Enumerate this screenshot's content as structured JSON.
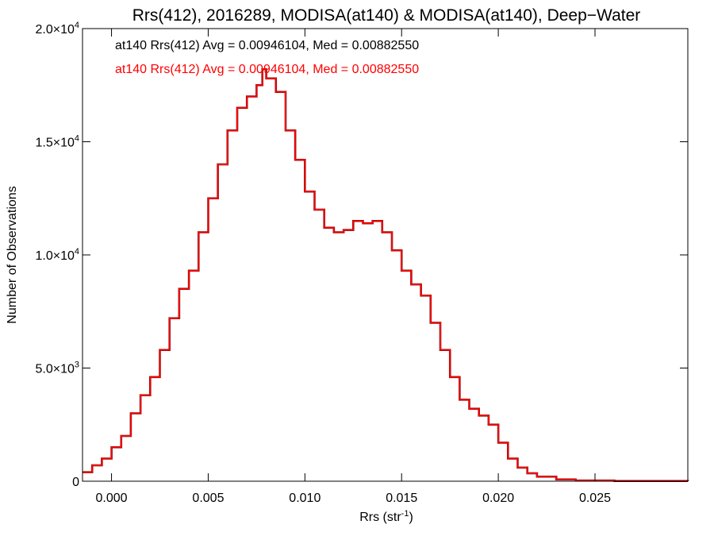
{
  "chart_data": {
    "type": "line",
    "title": "Rrs(412), 2016289, MODISA(at140) & MODISA(at140), Deep−Water",
    "xlabel": "Rrs (str",
    "xlabel_sup": "-1",
    "xlabel_close": ")",
    "ylabel": "Number of Observations",
    "xlim": [
      -0.0015,
      0.0298
    ],
    "ylim": [
      0,
      20000
    ],
    "x_ticks": [
      0.0,
      0.005,
      0.01,
      0.015,
      0.02,
      0.025
    ],
    "x_tick_labels": [
      "0.000",
      "0.005",
      "0.010",
      "0.015",
      "0.020",
      "0.025"
    ],
    "y_ticks": [
      0,
      5000,
      10000,
      15000,
      20000
    ],
    "y_tick_labels": [
      {
        "base": "0",
        "exp": ""
      },
      {
        "base": "5.0×10",
        "exp": "3"
      },
      {
        "base": "1.0×10",
        "exp": "4"
      },
      {
        "base": "1.5×10",
        "exp": "4"
      },
      {
        "base": "2.0×10",
        "exp": "4"
      }
    ],
    "legend_position": "top-left",
    "series": [
      {
        "name": "at140 Rrs(412) Avg = 0.00946104, Med = 0.00882550",
        "color": "#000000",
        "values": [
          [
            -0.0015,
            400
          ],
          [
            -0.001,
            700
          ],
          [
            -0.0005,
            1000
          ],
          [
            0.0,
            1500
          ],
          [
            0.0005,
            2000
          ],
          [
            0.001,
            3000
          ],
          [
            0.0015,
            3800
          ],
          [
            0.002,
            4600
          ],
          [
            0.0025,
            5800
          ],
          [
            0.003,
            7200
          ],
          [
            0.0035,
            8500
          ],
          [
            0.004,
            9300
          ],
          [
            0.0045,
            11000
          ],
          [
            0.005,
            12500
          ],
          [
            0.0055,
            14000
          ],
          [
            0.006,
            15500
          ],
          [
            0.0065,
            16500
          ],
          [
            0.007,
            17000
          ],
          [
            0.0075,
            17500
          ],
          [
            0.0078,
            18200
          ],
          [
            0.008,
            17800
          ],
          [
            0.0085,
            17200
          ],
          [
            0.009,
            15500
          ],
          [
            0.0095,
            14200
          ],
          [
            0.01,
            12800
          ],
          [
            0.0105,
            12000
          ],
          [
            0.011,
            11200
          ],
          [
            0.0115,
            11000
          ],
          [
            0.012,
            11100
          ],
          [
            0.0125,
            11500
          ],
          [
            0.013,
            11400
          ],
          [
            0.0135,
            11500
          ],
          [
            0.014,
            11000
          ],
          [
            0.0145,
            10200
          ],
          [
            0.015,
            9300
          ],
          [
            0.0155,
            8700
          ],
          [
            0.016,
            8200
          ],
          [
            0.0165,
            7000
          ],
          [
            0.017,
            5800
          ],
          [
            0.0175,
            4600
          ],
          [
            0.018,
            3600
          ],
          [
            0.0185,
            3200
          ],
          [
            0.019,
            2900
          ],
          [
            0.0195,
            2500
          ],
          [
            0.02,
            1700
          ],
          [
            0.0205,
            1000
          ],
          [
            0.021,
            600
          ],
          [
            0.0215,
            350
          ],
          [
            0.022,
            200
          ],
          [
            0.023,
            80
          ],
          [
            0.024,
            30
          ],
          [
            0.026,
            10
          ],
          [
            0.0298,
            0
          ]
        ]
      },
      {
        "name": "at140 Rrs(412) Avg = 0.00946104, Med = 0.00882550",
        "color": "#ff0000",
        "values": [
          [
            -0.0015,
            400
          ],
          [
            -0.001,
            700
          ],
          [
            -0.0005,
            1000
          ],
          [
            0.0,
            1500
          ],
          [
            0.0005,
            2000
          ],
          [
            0.001,
            3000
          ],
          [
            0.0015,
            3800
          ],
          [
            0.002,
            4600
          ],
          [
            0.0025,
            5800
          ],
          [
            0.003,
            7200
          ],
          [
            0.0035,
            8500
          ],
          [
            0.004,
            9300
          ],
          [
            0.0045,
            11000
          ],
          [
            0.005,
            12500
          ],
          [
            0.0055,
            14000
          ],
          [
            0.006,
            15500
          ],
          [
            0.0065,
            16500
          ],
          [
            0.007,
            17000
          ],
          [
            0.0075,
            17500
          ],
          [
            0.0078,
            18200
          ],
          [
            0.008,
            17800
          ],
          [
            0.0085,
            17200
          ],
          [
            0.009,
            15500
          ],
          [
            0.0095,
            14200
          ],
          [
            0.01,
            12800
          ],
          [
            0.0105,
            12000
          ],
          [
            0.011,
            11200
          ],
          [
            0.0115,
            11000
          ],
          [
            0.012,
            11100
          ],
          [
            0.0125,
            11500
          ],
          [
            0.013,
            11400
          ],
          [
            0.0135,
            11500
          ],
          [
            0.014,
            11000
          ],
          [
            0.0145,
            10200
          ],
          [
            0.015,
            9300
          ],
          [
            0.0155,
            8700
          ],
          [
            0.016,
            8200
          ],
          [
            0.0165,
            7000
          ],
          [
            0.017,
            5800
          ],
          [
            0.0175,
            4600
          ],
          [
            0.018,
            3600
          ],
          [
            0.0185,
            3200
          ],
          [
            0.019,
            2900
          ],
          [
            0.0195,
            2500
          ],
          [
            0.02,
            1700
          ],
          [
            0.0205,
            1000
          ],
          [
            0.021,
            600
          ],
          [
            0.0215,
            350
          ],
          [
            0.022,
            200
          ],
          [
            0.023,
            80
          ],
          [
            0.024,
            30
          ],
          [
            0.026,
            10
          ],
          [
            0.0298,
            0
          ]
        ]
      }
    ]
  }
}
